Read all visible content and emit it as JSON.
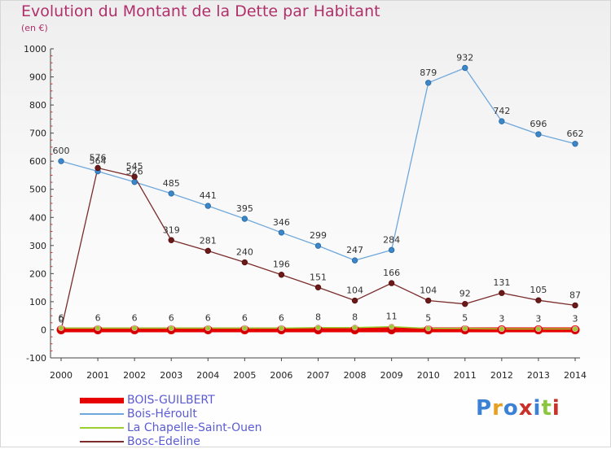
{
  "title": "Evolution du Montant de la Dette par Habitant",
  "subtitle": "(en €)",
  "logo": {
    "text": "Proxiti",
    "colors": [
      "#3b82d6",
      "#e8a020",
      "#3b82d6",
      "#c8322a",
      "#3b82d6",
      "#8cc63e",
      "#c8322a"
    ]
  },
  "chart_data": {
    "type": "line",
    "title": "Evolution du Montant de la Dette par Habitant",
    "ylabel": "(en €)",
    "x": [
      "2000",
      "2001",
      "2002",
      "2003",
      "2004",
      "2005",
      "2006",
      "2007",
      "2008",
      "2009",
      "2010",
      "2011",
      "2012",
      "2013",
      "2014"
    ],
    "ylim": [
      -100,
      1000
    ],
    "yticks": [
      "-100",
      "0",
      "100",
      "200",
      "300",
      "400",
      "500",
      "600",
      "700",
      "800",
      "900",
      "1000"
    ],
    "grid": false,
    "legend_position": "bottom-left",
    "series": [
      {
        "name": "BOIS-GUILBERT",
        "color": "#e60000",
        "values": [
          0,
          0,
          0,
          0,
          0,
          0,
          0,
          0,
          0,
          0,
          0,
          0,
          0,
          0,
          0
        ],
        "labels": []
      },
      {
        "name": "Bois-Héroult",
        "color": "#6fa8dc",
        "values": [
          600,
          564,
          526,
          485,
          441,
          395,
          346,
          299,
          247,
          284,
          879,
          932,
          742,
          696,
          662
        ],
        "labels": [
          "600",
          "564",
          "526",
          "485",
          "441",
          "395",
          "346",
          "299",
          "247",
          "284",
          "879",
          "932",
          "742",
          "696",
          "662"
        ]
      },
      {
        "name": "La Chapelle-Saint-Ouen",
        "color": "#9acd32",
        "values": [
          6,
          6,
          6,
          6,
          6,
          6,
          6,
          8,
          8,
          11,
          5,
          5,
          3,
          3,
          3
        ],
        "labels": [
          "6",
          "6",
          "6",
          "6",
          "6",
          "6",
          "6",
          "8",
          "8",
          "11",
          "5",
          "5",
          "3",
          "3",
          "3"
        ]
      },
      {
        "name": "Bosc-Edeline",
        "color": "#7b2c2c",
        "values": [
          0,
          576,
          545,
          319,
          281,
          240,
          196,
          151,
          104,
          166,
          104,
          92,
          131,
          105,
          87
        ],
        "labels": [
          "0",
          "576",
          "545",
          "319",
          "281",
          "240",
          "196",
          "151",
          "104",
          "166",
          "104",
          "92",
          "131",
          "105",
          "87"
        ]
      }
    ]
  }
}
